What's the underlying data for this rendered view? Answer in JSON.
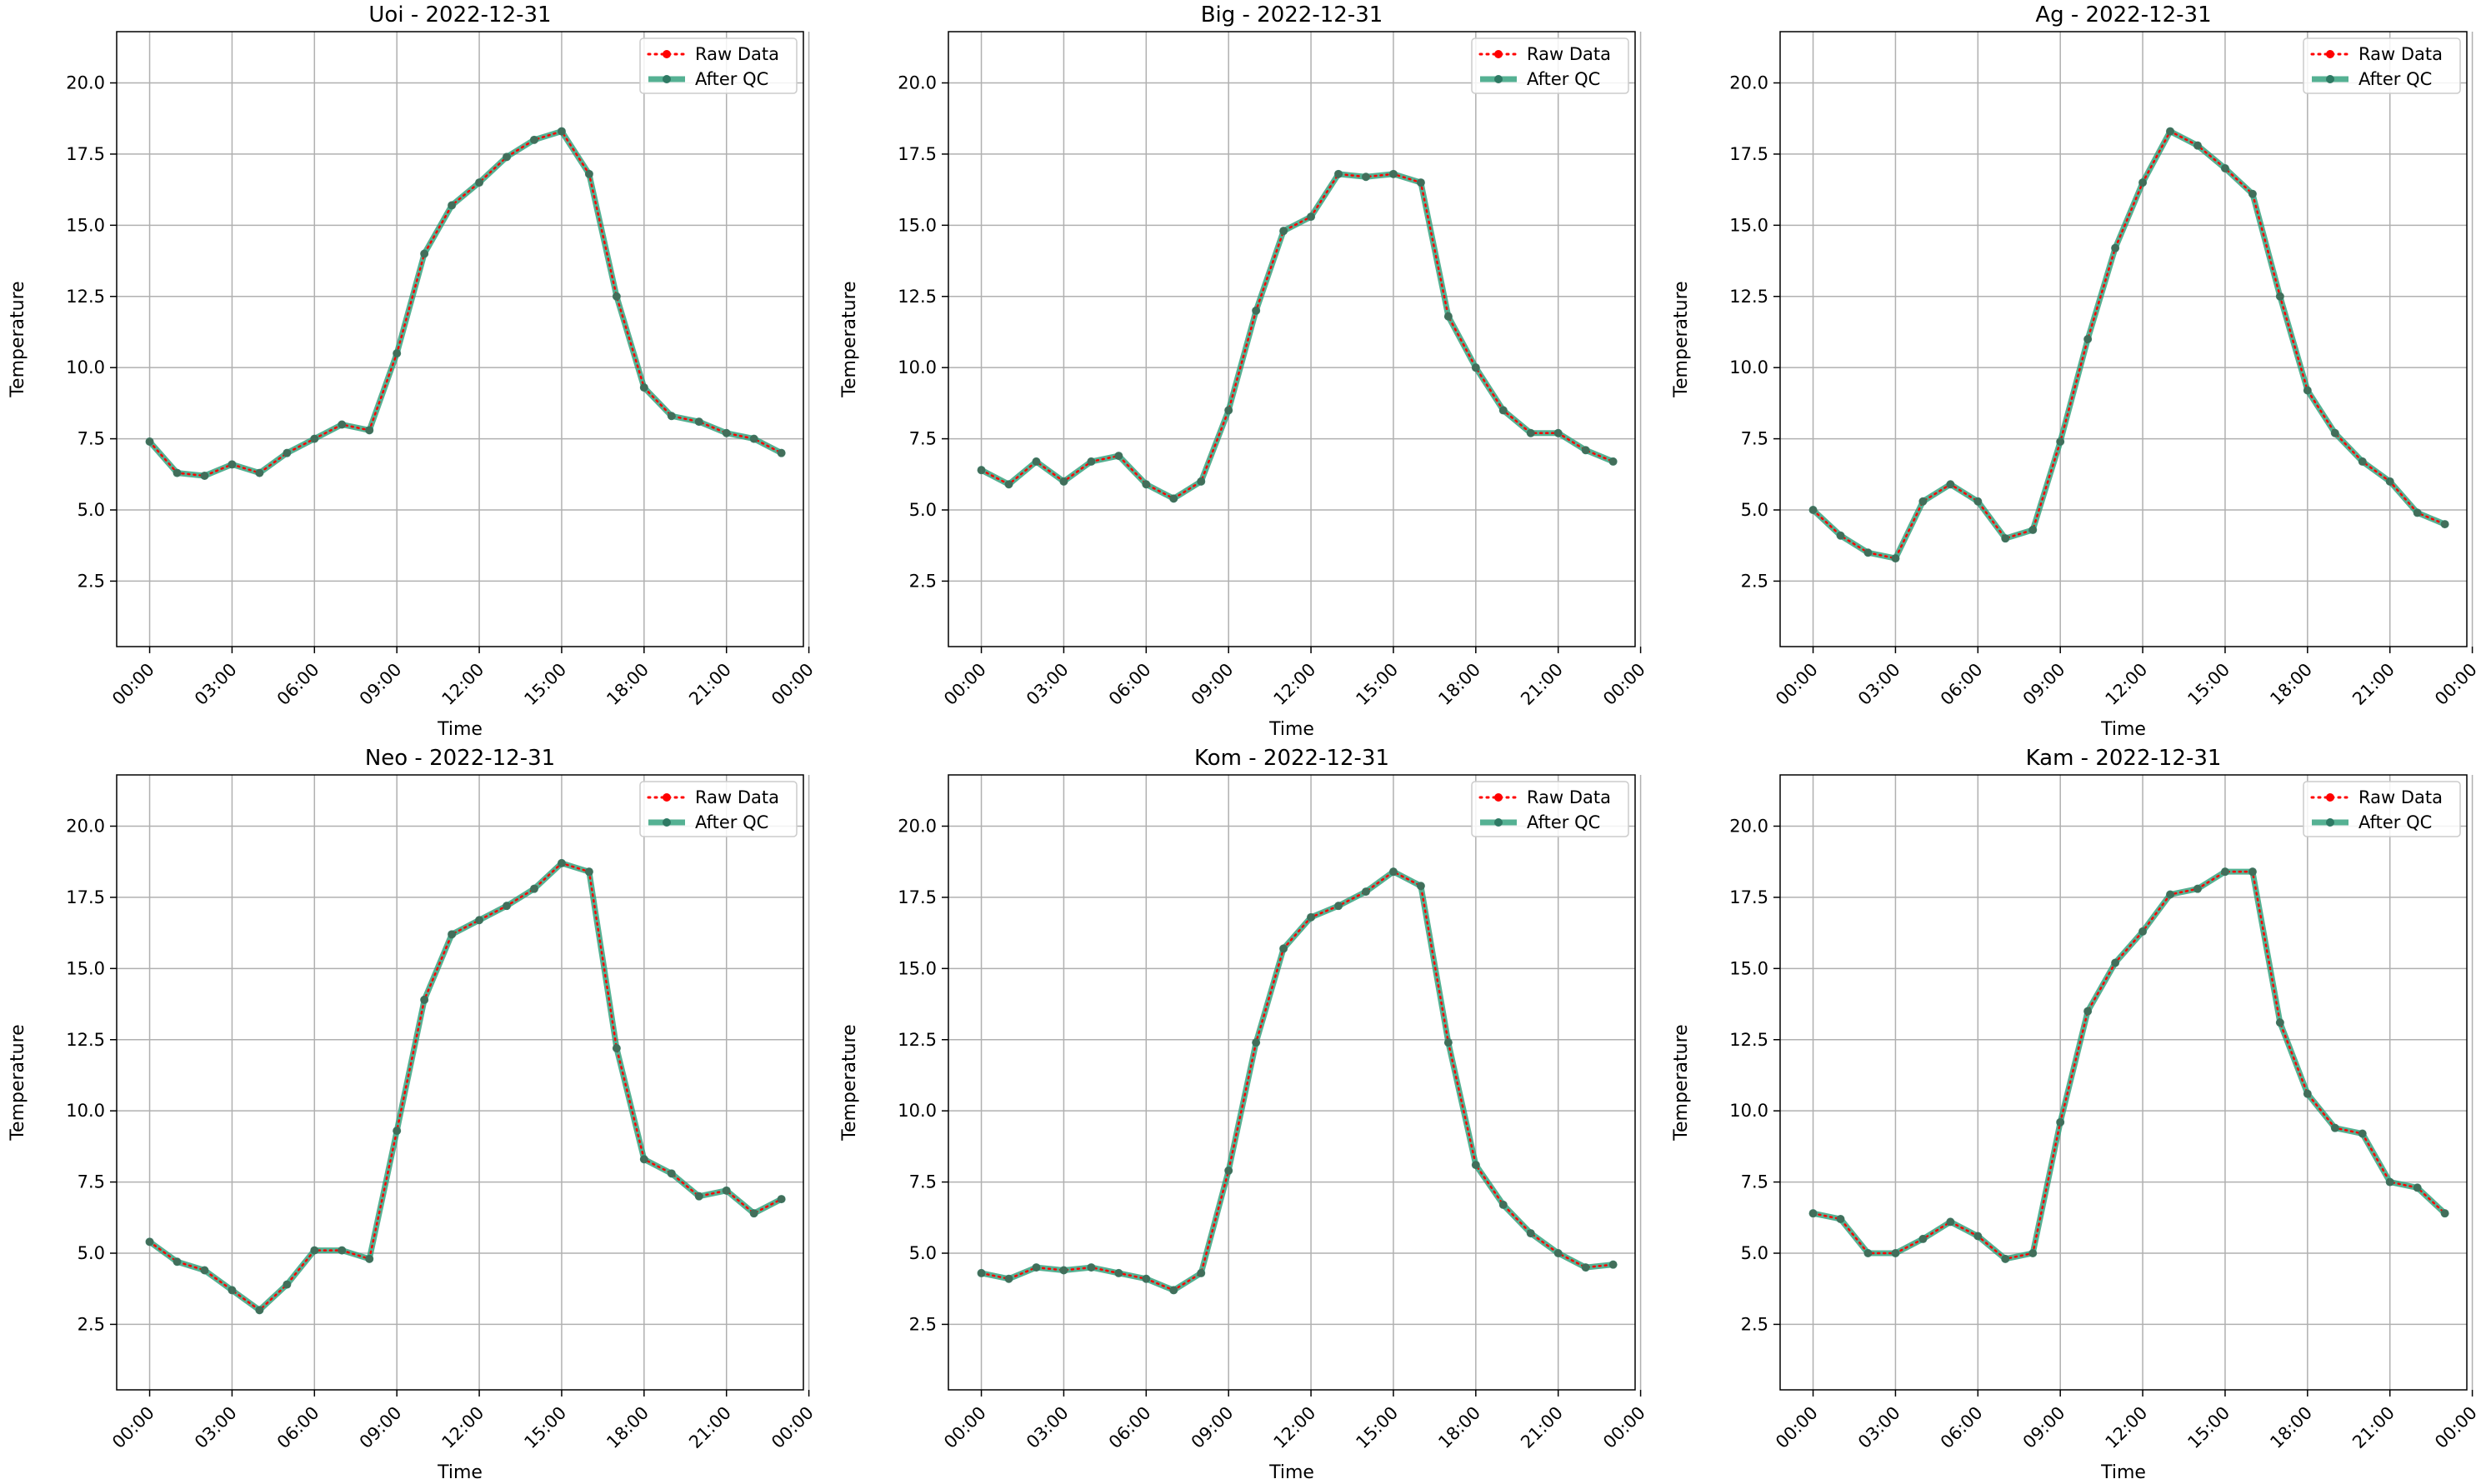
{
  "figure": {
    "legend_position": "upper right",
    "grid": true,
    "colors": {
      "raw": "#ff0000",
      "qc": "#2a9d78",
      "qc_marker": "#2e7a64",
      "grid": "#b0b0b0"
    }
  },
  "chart_data": [
    {
      "type": "line",
      "title": "Uoi - 2022-12-31",
      "xlabel": "Time",
      "ylabel": "Temperature",
      "xlim": [
        -1.2,
        23.8
      ],
      "ylim": [
        0.2,
        21.8
      ],
      "x_ticks": [
        0,
        3,
        6,
        9,
        12,
        15,
        18,
        21,
        24
      ],
      "x_tick_labels": [
        "00:00",
        "03:00",
        "06:00",
        "09:00",
        "12:00",
        "15:00",
        "18:00",
        "21:00",
        "00:00"
      ],
      "y_ticks": [
        2.5,
        5.0,
        7.5,
        10.0,
        12.5,
        15.0,
        17.5,
        20.0
      ],
      "y_tick_labels": [
        "2.5",
        "5.0",
        "7.5",
        "10.0",
        "12.5",
        "15.0",
        "17.5",
        "20.0"
      ],
      "x": [
        0,
        1,
        2,
        3,
        4,
        5,
        6,
        7,
        8,
        9,
        10,
        11,
        12,
        13,
        14,
        15,
        16,
        17,
        18,
        19,
        20,
        21,
        22,
        23
      ],
      "series": [
        {
          "name": "Raw Data",
          "values": [
            7.4,
            6.3,
            6.2,
            6.6,
            6.3,
            7.0,
            7.5,
            8.0,
            7.8,
            10.5,
            14.0,
            15.7,
            16.5,
            17.4,
            18.0,
            18.3,
            16.8,
            12.5,
            9.3,
            8.3,
            8.1,
            7.7,
            7.5,
            7.0
          ]
        },
        {
          "name": "After QC",
          "values": [
            7.4,
            6.3,
            6.2,
            6.6,
            6.3,
            7.0,
            7.5,
            8.0,
            7.8,
            10.5,
            14.0,
            15.7,
            16.5,
            17.4,
            18.0,
            18.3,
            16.8,
            12.5,
            9.3,
            8.3,
            8.1,
            7.7,
            7.5,
            7.0
          ]
        }
      ]
    },
    {
      "type": "line",
      "title": "Big - 2022-12-31",
      "xlabel": "Time",
      "ylabel": "Temperature",
      "xlim": [
        -1.2,
        23.8
      ],
      "ylim": [
        0.2,
        21.8
      ],
      "x_ticks": [
        0,
        3,
        6,
        9,
        12,
        15,
        18,
        21,
        24
      ],
      "x_tick_labels": [
        "00:00",
        "03:00",
        "06:00",
        "09:00",
        "12:00",
        "15:00",
        "18:00",
        "21:00",
        "00:00"
      ],
      "y_ticks": [
        2.5,
        5.0,
        7.5,
        10.0,
        12.5,
        15.0,
        17.5,
        20.0
      ],
      "y_tick_labels": [
        "2.5",
        "5.0",
        "7.5",
        "10.0",
        "12.5",
        "15.0",
        "17.5",
        "20.0"
      ],
      "x": [
        0,
        1,
        2,
        3,
        4,
        5,
        6,
        7,
        8,
        9,
        10,
        11,
        12,
        13,
        14,
        15,
        16,
        17,
        18,
        19,
        20,
        21,
        22,
        23
      ],
      "series": [
        {
          "name": "Raw Data",
          "values": [
            6.4,
            5.9,
            6.7,
            6.0,
            6.7,
            6.9,
            5.9,
            5.4,
            6.0,
            8.5,
            12.0,
            14.8,
            15.3,
            16.8,
            16.7,
            16.8,
            16.5,
            11.8,
            10.0,
            8.5,
            7.7,
            7.7,
            7.1,
            6.7
          ]
        },
        {
          "name": "After QC",
          "values": [
            6.4,
            5.9,
            6.7,
            6.0,
            6.7,
            6.9,
            5.9,
            5.4,
            6.0,
            8.5,
            12.0,
            14.8,
            15.3,
            16.8,
            16.7,
            16.8,
            16.5,
            11.8,
            10.0,
            8.5,
            7.7,
            7.7,
            7.1,
            6.7
          ]
        }
      ]
    },
    {
      "type": "line",
      "title": "Ag - 2022-12-31",
      "xlabel": "Time",
      "ylabel": "Temperature",
      "xlim": [
        -1.2,
        23.8
      ],
      "ylim": [
        0.2,
        21.8
      ],
      "x_ticks": [
        0,
        3,
        6,
        9,
        12,
        15,
        18,
        21,
        24
      ],
      "x_tick_labels": [
        "00:00",
        "03:00",
        "06:00",
        "09:00",
        "12:00",
        "15:00",
        "18:00",
        "21:00",
        "00:00"
      ],
      "y_ticks": [
        2.5,
        5.0,
        7.5,
        10.0,
        12.5,
        15.0,
        17.5,
        20.0
      ],
      "y_tick_labels": [
        "2.5",
        "5.0",
        "7.5",
        "10.0",
        "12.5",
        "15.0",
        "17.5",
        "20.0"
      ],
      "x": [
        0,
        1,
        2,
        3,
        4,
        5,
        6,
        7,
        8,
        9,
        10,
        11,
        12,
        13,
        14,
        15,
        16,
        17,
        18,
        19,
        20,
        21,
        22,
        23
      ],
      "series": [
        {
          "name": "Raw Data",
          "values": [
            5.0,
            4.1,
            3.5,
            3.3,
            5.3,
            5.9,
            5.3,
            4.0,
            4.3,
            7.4,
            11.0,
            14.2,
            16.5,
            18.3,
            17.8,
            17.0,
            16.1,
            12.5,
            9.2,
            7.7,
            6.7,
            6.0,
            4.9,
            4.5
          ]
        },
        {
          "name": "After QC",
          "values": [
            5.0,
            4.1,
            3.5,
            3.3,
            5.3,
            5.9,
            5.3,
            4.0,
            4.3,
            7.4,
            11.0,
            14.2,
            16.5,
            18.3,
            17.8,
            17.0,
            16.1,
            12.5,
            9.2,
            7.7,
            6.7,
            6.0,
            4.9,
            4.5
          ]
        }
      ]
    },
    {
      "type": "line",
      "title": "Neo - 2022-12-31",
      "xlabel": "Time",
      "ylabel": "Temperature",
      "xlim": [
        -1.2,
        23.8
      ],
      "ylim": [
        0.2,
        21.8
      ],
      "x_ticks": [
        0,
        3,
        6,
        9,
        12,
        15,
        18,
        21,
        24
      ],
      "x_tick_labels": [
        "00:00",
        "03:00",
        "06:00",
        "09:00",
        "12:00",
        "15:00",
        "18:00",
        "21:00",
        "00:00"
      ],
      "y_ticks": [
        2.5,
        5.0,
        7.5,
        10.0,
        12.5,
        15.0,
        17.5,
        20.0
      ],
      "y_tick_labels": [
        "2.5",
        "5.0",
        "7.5",
        "10.0",
        "12.5",
        "15.0",
        "17.5",
        "20.0"
      ],
      "x": [
        0,
        1,
        2,
        3,
        4,
        5,
        6,
        7,
        8,
        9,
        10,
        11,
        12,
        13,
        14,
        15,
        16,
        17,
        18,
        19,
        20,
        21,
        22,
        23
      ],
      "series": [
        {
          "name": "Raw Data",
          "values": [
            5.4,
            4.7,
            4.4,
            3.7,
            3.0,
            3.9,
            5.1,
            5.1,
            4.8,
            9.3,
            13.9,
            16.2,
            16.7,
            17.2,
            17.8,
            18.7,
            18.4,
            12.2,
            8.3,
            7.8,
            7.0,
            7.2,
            6.4,
            6.9
          ]
        },
        {
          "name": "After QC",
          "values": [
            5.4,
            4.7,
            4.4,
            3.7,
            3.0,
            3.9,
            5.1,
            5.1,
            4.8,
            9.3,
            13.9,
            16.2,
            16.7,
            17.2,
            17.8,
            18.7,
            18.4,
            12.2,
            8.3,
            7.8,
            7.0,
            7.2,
            6.4,
            6.9
          ]
        }
      ]
    },
    {
      "type": "line",
      "title": "Kom - 2022-12-31",
      "xlabel": "Time",
      "ylabel": "Temperature",
      "xlim": [
        -1.2,
        23.8
      ],
      "ylim": [
        0.2,
        21.8
      ],
      "x_ticks": [
        0,
        3,
        6,
        9,
        12,
        15,
        18,
        21,
        24
      ],
      "x_tick_labels": [
        "00:00",
        "03:00",
        "06:00",
        "09:00",
        "12:00",
        "15:00",
        "18:00",
        "21:00",
        "00:00"
      ],
      "y_ticks": [
        2.5,
        5.0,
        7.5,
        10.0,
        12.5,
        15.0,
        17.5,
        20.0
      ],
      "y_tick_labels": [
        "2.5",
        "5.0",
        "7.5",
        "10.0",
        "12.5",
        "15.0",
        "17.5",
        "20.0"
      ],
      "x": [
        0,
        1,
        2,
        3,
        4,
        5,
        6,
        7,
        8,
        9,
        10,
        11,
        12,
        13,
        14,
        15,
        16,
        17,
        18,
        19,
        20,
        21,
        22,
        23
      ],
      "series": [
        {
          "name": "Raw Data",
          "values": [
            4.3,
            4.1,
            4.5,
            4.4,
            4.5,
            4.3,
            4.1,
            3.7,
            4.3,
            7.9,
            12.4,
            15.7,
            16.8,
            17.2,
            17.7,
            18.4,
            17.9,
            12.4,
            8.1,
            6.7,
            5.7,
            5.0,
            4.5,
            4.6
          ]
        },
        {
          "name": "After QC",
          "values": [
            4.3,
            4.1,
            4.5,
            4.4,
            4.5,
            4.3,
            4.1,
            3.7,
            4.3,
            7.9,
            12.4,
            15.7,
            16.8,
            17.2,
            17.7,
            18.4,
            17.9,
            12.4,
            8.1,
            6.7,
            5.7,
            5.0,
            4.5,
            4.6
          ]
        }
      ]
    },
    {
      "type": "line",
      "title": "Kam - 2022-12-31",
      "xlabel": "Time",
      "ylabel": "Temperature",
      "xlim": [
        -1.2,
        23.8
      ],
      "ylim": [
        0.2,
        21.8
      ],
      "x_ticks": [
        0,
        3,
        6,
        9,
        12,
        15,
        18,
        21,
        24
      ],
      "x_tick_labels": [
        "00:00",
        "03:00",
        "06:00",
        "09:00",
        "12:00",
        "15:00",
        "18:00",
        "21:00",
        "00:00"
      ],
      "y_ticks": [
        2.5,
        5.0,
        7.5,
        10.0,
        12.5,
        15.0,
        17.5,
        20.0
      ],
      "y_tick_labels": [
        "2.5",
        "5.0",
        "7.5",
        "10.0",
        "12.5",
        "15.0",
        "17.5",
        "20.0"
      ],
      "x": [
        0,
        1,
        2,
        3,
        4,
        5,
        6,
        7,
        8,
        9,
        10,
        11,
        12,
        13,
        14,
        15,
        16,
        17,
        18,
        19,
        20,
        21,
        22,
        23
      ],
      "series": [
        {
          "name": "Raw Data",
          "values": [
            6.4,
            6.2,
            5.0,
            5.0,
            5.5,
            6.1,
            5.6,
            4.8,
            5.0,
            9.6,
            13.5,
            15.2,
            16.3,
            17.6,
            17.8,
            18.4,
            18.4,
            13.1,
            10.6,
            9.4,
            9.2,
            7.5,
            7.3,
            6.4
          ]
        },
        {
          "name": "After QC",
          "values": [
            6.4,
            6.2,
            5.0,
            5.0,
            5.5,
            6.1,
            5.6,
            4.8,
            5.0,
            9.6,
            13.5,
            15.2,
            16.3,
            17.6,
            17.8,
            18.4,
            18.4,
            13.1,
            10.6,
            9.4,
            9.2,
            7.5,
            7.3,
            6.4
          ]
        }
      ]
    }
  ]
}
